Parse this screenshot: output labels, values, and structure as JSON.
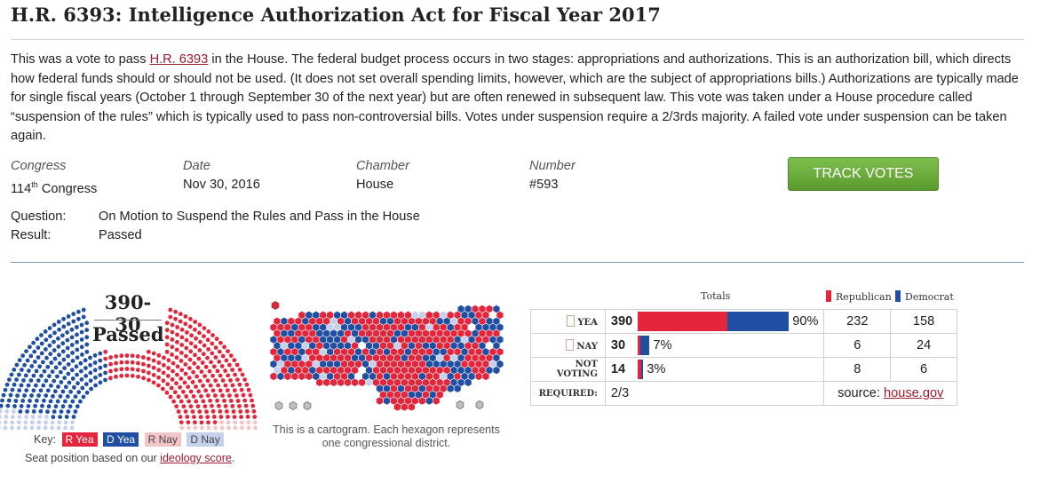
{
  "title": "H.R. 6393: Intelligence Authorization Act for Fiscal Year 2017",
  "description": {
    "before_link": "This was a vote to pass ",
    "link": "H.R. 6393",
    "after_link": " in the House. The federal budget process occurs in two stages: appropriations and authorizations. This is an authorization bill, which directs how federal funds should or should not be used. (It does not set overall spending limits, however, which are the subject of appropriations bills.) Authorizations are typically made for single fiscal years (October 1 through September 30 of the next year) but are often renewed in subsequent law. This vote was taken under a House procedure called “suspension of the rules” which is typically used to pass non-controversial bills. Votes under suspension require a 2/3rds majority. A failed vote under suspension can be taken again."
  },
  "meta": {
    "congress_label": "Congress",
    "congress_num": "114",
    "congress_sup": "th",
    "congress_word": " Congress",
    "date_label": "Date",
    "date_value": "Nov 30, 2016",
    "chamber_label": "Chamber",
    "chamber_value": "House",
    "number_label": "Number",
    "number_value": "#593"
  },
  "track_button": "TRACK VOTES",
  "question_label": "Question:",
  "question_value": "On Motion to Suspend the Rules and Pass in the House",
  "result_label": "Result:",
  "result_value": "Passed",
  "seat_chart": {
    "count": "390-30",
    "result": "Passed",
    "key_label": "Key:",
    "keys": [
      "R Yea",
      "D Yea",
      "R Nay",
      "D Nay"
    ],
    "note_before": "Seat position based on our ",
    "note_link": "ideology score",
    "note_after": "."
  },
  "cartogram": {
    "caption": "This is a cartogram. Each hexagon represents one congressional district."
  },
  "totals_table": {
    "totals_label": "Totals",
    "republican_label": "Republican",
    "democrat_label": "Democrat",
    "rows": [
      {
        "label": "YEA",
        "total": "390",
        "pct": "90%",
        "rep": "232",
        "dem": "158"
      },
      {
        "label": "NAY",
        "total": "30",
        "pct": "7%",
        "rep": "6",
        "dem": "24"
      },
      {
        "label": "NOT VOTING",
        "total": "14",
        "pct": "3%",
        "rep": "8",
        "dem": "6"
      }
    ],
    "required_label": "REQUIRED:",
    "required_value": "2/3",
    "source_label": "source: ",
    "source_link": "house.gov"
  },
  "colors": {
    "r_yea": "#e3263b",
    "d_yea": "#1f4ea3",
    "r_nay": "#f3c4c8",
    "d_nay": "#c5d0ec",
    "button": "#6aad3d"
  },
  "chart_data": {
    "type": "bar",
    "categories": [
      "YEA",
      "NAY",
      "NOT VOTING"
    ],
    "series": [
      {
        "name": "Republican",
        "values": [
          232,
          6,
          8
        ]
      },
      {
        "name": "Democrat",
        "values": [
          158,
          24,
          6
        ]
      }
    ]
  }
}
